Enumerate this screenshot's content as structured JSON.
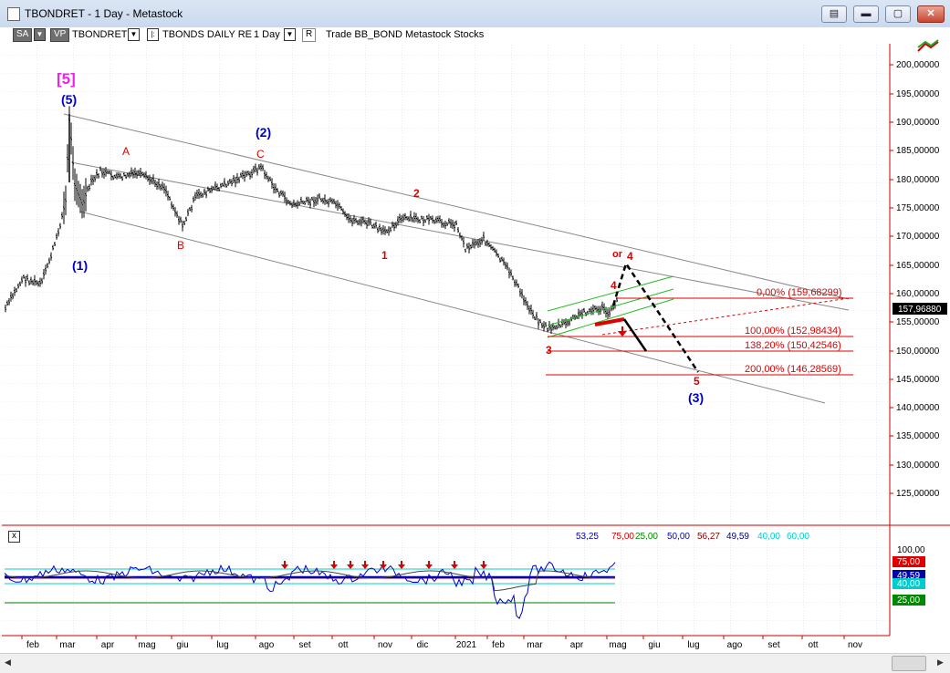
{
  "window": {
    "title": "TBONDRET - 1 Day - Metastock"
  },
  "toolbar": {
    "sa": "SA",
    "vp": "VP",
    "symbol": "TBONDRET",
    "security_name": "TBONDS DAILY RE",
    "period": "1 Day",
    "r_button": "R",
    "rest": "Trade  BB_BOND  Metastock  Stocks"
  },
  "price_axis": {
    "labels": [
      "200,00000",
      "195,00000",
      "190,00000",
      "185,00000",
      "180,00000",
      "175,00000",
      "170,00000",
      "165,00000",
      "160,00000",
      "155,00000",
      "150,00000",
      "145,00000",
      "140,00000",
      "135,00000",
      "130,00000",
      "125,00000"
    ],
    "last_price": "157,96880"
  },
  "time_axis": [
    "feb",
    "mar",
    "apr",
    "mag",
    "giu",
    "lug",
    "ago",
    "set",
    "ott",
    "nov",
    "dic",
    "2021",
    "feb",
    "mar",
    "apr",
    "mag",
    "giu",
    "lug",
    "ago",
    "set",
    "ott",
    "nov"
  ],
  "wave_labels": {
    "w5_bracket": "[5]",
    "w5": "(5)",
    "w1": "(1)",
    "wA": "A",
    "wB": "B",
    "wC": "C",
    "w2big": "(2)",
    "w2": "2",
    "w1small": "1",
    "w3": "3",
    "w4a": "4",
    "w4b": "4",
    "or": "or",
    "w5small": "5",
    "w3big": "(3)"
  },
  "fib_labels": [
    "0,00% (159,68299)",
    "100,00% (152,98434)",
    "138,20% (150,42546)",
    "200,00% (146,28569)"
  ],
  "oscillator": {
    "close": "x",
    "readouts": [
      "53,25",
      "75,00",
      "25,00",
      "50,00",
      "56,27",
      "49,59",
      "40,00",
      "60,00"
    ],
    "readout_colors": [
      "#0000cc",
      "#cc0000",
      "#008800",
      "#0000cc",
      "#8b0000",
      "#000080",
      "#00cccc",
      "#00cccc"
    ],
    "axis": [
      "100,00",
      "75,00",
      "49,59",
      "40,00",
      "25,00"
    ]
  },
  "colors": {
    "red": "#dd0000",
    "blue": "#0000cc",
    "magenta": "#ee22ee",
    "green": "#22bb22"
  }
}
